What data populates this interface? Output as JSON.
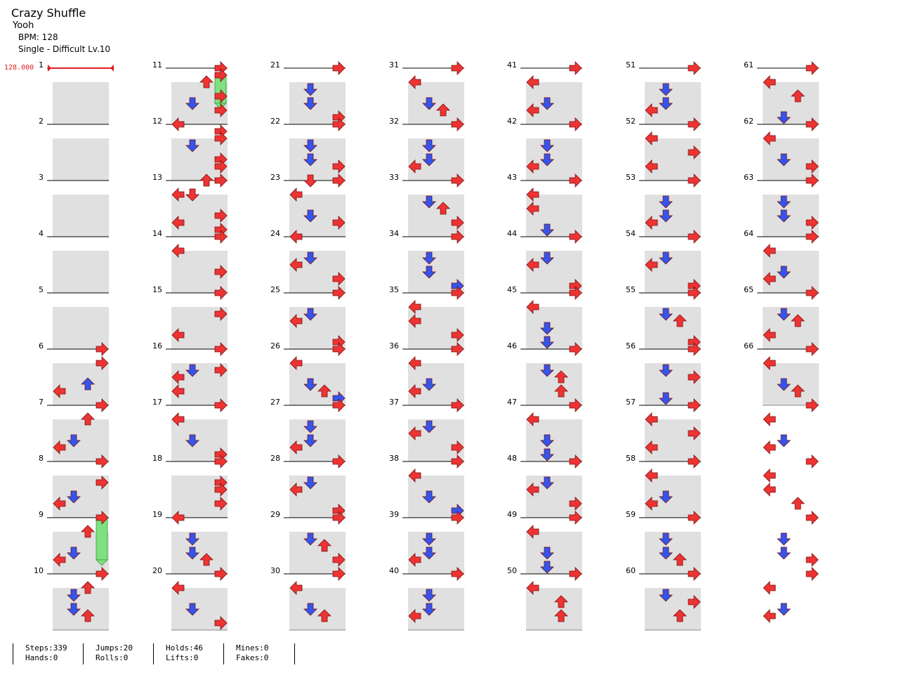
{
  "song": {
    "title": "Crazy Shuffle",
    "artist": "Yooh",
    "bpm_label": "BPM: 128",
    "difficulty_label": "Single - Difficult Lv.10"
  },
  "bpm_marker": "128.000",
  "measure_count": 66,
  "colors": {
    "red": "#ee3333",
    "blue": "#3355ee",
    "hold": "#7ee07e",
    "band": "#e0e0e0"
  },
  "stats": {
    "steps": "Steps:339",
    "hands": "Hands:0",
    "jumps": "Jumps:20",
    "rolls": "Rolls:0",
    "holds": "Holds:46",
    "lifts": "Lifts:0",
    "mines": "Mines:0",
    "fakes": "Fakes:0"
  },
  "notes": [
    "",
    "",
    "",
    "",
    "",
    "R........|..R.....|.U......|L.......",
    "R........|..U.....|.D......|L.......",
    "R........|...R....|.D......|L.......",
    "H3.......|..U.....|.D......|L.......",
    "R........|.DU.....|.D......|..U.....",
    "R..H2....|..U.....|.D..R...|......R.",
    "L..R.....|.D..R...|...R....|R.......",
    "R.U......|L.D.....|...R....|L..R....",
    "R........|L.......|.......R|........",
    "R........|...R....|........|L.......",
    "R........|.D.R....|L.......|L.......",
    "R........|L.......|.D......|.R......",
    "R........|...R....|R.......|......R.",
    "L.......|.D......|.D.......|..U.....",
    "R........|L.......|.D......|...R....",
    "R.......|.D......|.D.......|...R....",
    "R.......|.D......|.D.......|..R.....",
    "R.D.....|L.......|.D.......|..R.....",
    "L.......|.D......|L.......|..R.....",
    "R.......|.D......|L.......|...R....",
    "R.......|L.......|.D......|..UB....",
    "R.......|.D......|.D......|L.......",
    "R.......|.D......|L.......|...R....",
    "R.......|.D......|..U.....|..R.....",
    "R.......|L.......|.D......|..U.....",
    "R.......|L.......|.D......|..U.....",
    "R.......|.D......|.D......|L.......",
    "R.......|.D......|..U.....|..R.....",
    "R.......|.D......|.D......|...B....",
    "R.......|L.......|L.......|..R.....",
    "R.......|L.......|.D......|L.......",
    "R.......|.D......|L.......|..R.....",
    "R.......|L.......|.D......|...B....",
    "R.......|.D......|.D......|L.......",
    "R.......|.D......|.D......|L.......",
    "R.......|L.......|.D......|L.......",
    "R.......|.D......|.D......|L.......",
    "R.......|L.......|L.......|.D......",
    "R.......|.D......|L.......|...R....",
    "R.......|L.......|.D......|.D......",
    "R.......|.D......|..U.....|..U.....",
    "R.......|L.......|.D......|.D......",
    "R.......|.D......|L.......|..R.....",
    "R.......|L.......|.D......|.D......",
    "R.......|L.......|..U.....|..U.....",
    "R.......|.D......|.D......|L.......",
    "R.......|L.......|..R.....|L.......",
    "R.......|.D......|.D......|L.......",
    "R.......|.D......|L.......|...R....",
    "R.......|.D......|..U.....|...R....",
    "R.......|.D......|..R.....|.D......",
    "R.......|L.......|..R.....|L.......",
    "R.......|L.......|.D......|L.......",
    "R.......|.D......|.D......|..U.....",
    "R.......|.D......|..R.....|..U.....",
    "R.......|L.......|..U.....|.D......",
    "R.......|L.......|.D......|..R.....",
    "R.......|.D......|.D......|..R.....",
    "R.......|L.......|.D......|L.......",
    "R.......|.D......|..U.....|L.......",
    "R.......|L.......|.D......|..U.....",
    "R.......|L.......|.D......|L.......",
    "R.......|L.......|L.......|..U.....",
    "R.......|.D......|.D......|..R.....",
    "R.......|L.......|.D......|L......."
  ]
}
